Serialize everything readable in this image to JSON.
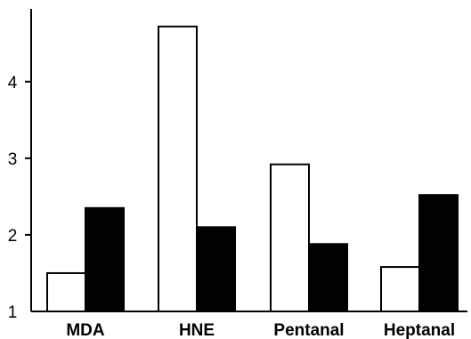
{
  "chart_data": {
    "type": "bar",
    "categories": [
      "MDA",
      "HNE",
      "Pentanal",
      "Heptanal"
    ],
    "series": [
      {
        "values": [
          1.5,
          4.72,
          2.92,
          1.58
        ],
        "color": "#ffffff"
      },
      {
        "values": [
          2.35,
          2.1,
          1.88,
          2.52
        ],
        "color": "#000000"
      }
    ],
    "y_ticks": [
      "1",
      "2",
      "3",
      "4"
    ],
    "ylim": [
      1,
      4.95
    ],
    "xlabel": "",
    "ylabel": "",
    "title": "",
    "grid": false,
    "legend": false
  }
}
